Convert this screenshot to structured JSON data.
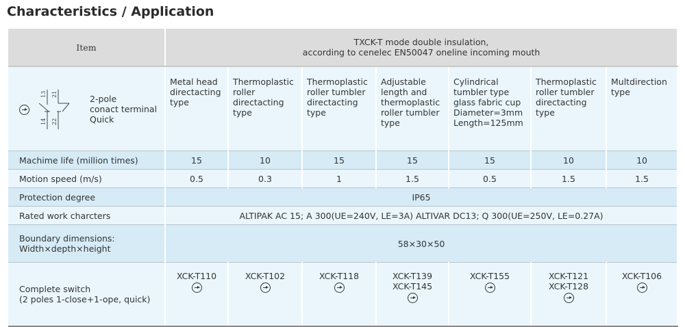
{
  "title": "Characteristics / Application",
  "header": {
    "item": "Item",
    "mode_line1": "TXCK-T mode double insulation,",
    "mode_line2": "according to cenelec EN50047 oneline incoming mouth"
  },
  "terminal": {
    "label_lines": [
      "2-pole",
      "conact terminal",
      "Quick"
    ],
    "contacts": [
      "13",
      "21",
      "14",
      "22"
    ]
  },
  "types": [
    [
      "Metal head",
      "directacting",
      "type"
    ],
    [
      "Thermoplastic",
      "roller",
      "directacting",
      "type"
    ],
    [
      "Thermoplastic",
      "roller tumbler",
      "directacting",
      "type"
    ],
    [
      "Adjustable",
      "length and",
      "thermoplastic",
      "roller tumbler",
      "type"
    ],
    [
      "Cylindrical",
      "tumbler type",
      "glass fabric cup",
      "Diameter=3mm",
      "Length=125mm"
    ],
    [
      "Thermoplastic",
      "roller tumbler",
      "directacting",
      "type"
    ],
    [
      "Multdirection",
      "type"
    ]
  ],
  "rows": {
    "life": {
      "label": "Machime life (million times)",
      "values": [
        "15",
        "10",
        "15",
        "15",
        "15",
        "10",
        "10"
      ]
    },
    "speed": {
      "label": "Motion speed (m/s)",
      "values": [
        "0.5",
        "0.3",
        "1",
        "1.5",
        "0.5",
        "1.5",
        "1.5"
      ]
    },
    "protection": {
      "label": "Protection degree",
      "value": "IP65"
    },
    "rated": {
      "label": "Rated work charcters",
      "value": "ALTIPAK AC 15; A 300(UE=240V, LE=3A) ALTIVAR DC13; Q 300(UE=250V, LE=0.27A)"
    },
    "boundary": {
      "label_line1": "Boundary dimensions:",
      "label_line2": "Width×depth×height",
      "value": "58×30×50"
    },
    "complete": {
      "label_line1": "Complete switch",
      "label_line2": "(2 poles 1-close+1-ope, quick)",
      "models": [
        [
          "XCK-T110"
        ],
        [
          "XCK-T102"
        ],
        [
          "XCK-T118"
        ],
        [
          "XCK-T139",
          "XCK-T145"
        ],
        [
          "XCK-T155"
        ],
        [
          "XCK-T121",
          "XCK-T128"
        ],
        [
          "XCK-T106"
        ]
      ]
    }
  },
  "icons": {
    "positive-opening": "circle-arrow-icon"
  }
}
